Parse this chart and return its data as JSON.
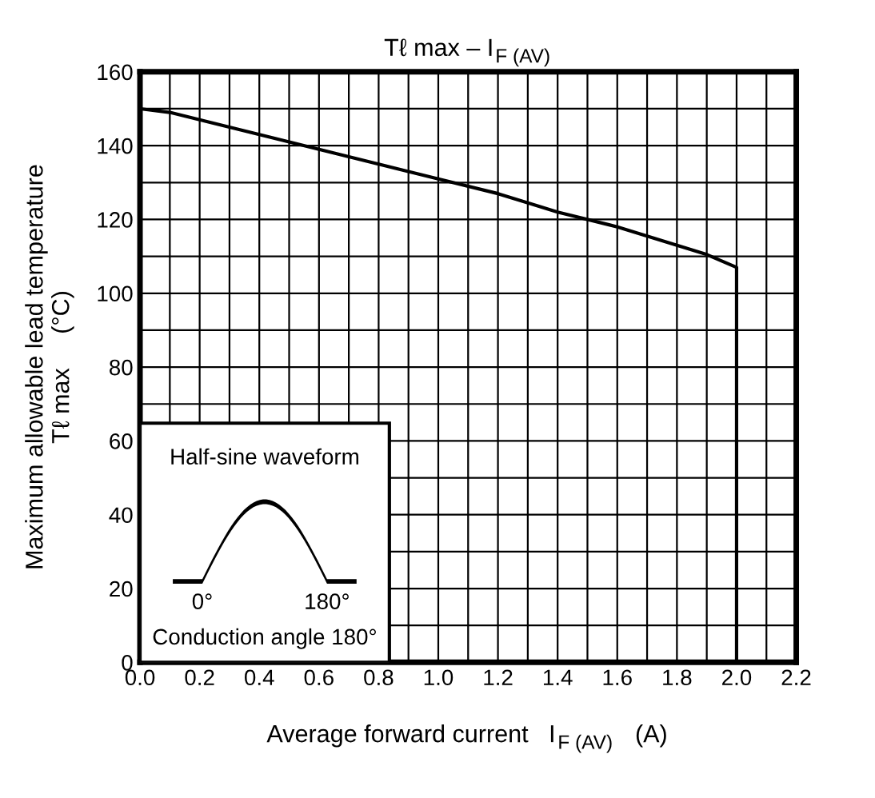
{
  "chart_data": {
    "type": "line",
    "title": "Tℓ max – I$_{F (AV)}$",
    "xlabel": "Average forward current   I$_{F (AV)}$   (A)",
    "ylabel": "Maximum allowable lead temperature\nTℓ max     (°C)",
    "series": [
      {
        "color": "#000000",
        "x": [
          0.0,
          0.1,
          0.2,
          0.4,
          0.6,
          0.8,
          1.0,
          1.2,
          1.4,
          1.6,
          1.8,
          1.9,
          2.0,
          2.0
        ],
        "values": [
          150,
          149,
          147,
          143,
          139,
          135,
          131,
          127,
          122,
          118,
          113,
          110.5,
          107,
          0
        ]
      }
    ],
    "xlim": [
      0,
      2.2
    ],
    "ylim": [
      0,
      160
    ],
    "xticks": [
      {
        "value": 0.0,
        "label": "0.0"
      },
      {
        "value": 0.1,
        "label": null
      },
      {
        "value": 0.2,
        "label": "0.2"
      },
      {
        "value": 0.3,
        "label": null
      },
      {
        "value": 0.4,
        "label": "0.4"
      },
      {
        "value": 0.5,
        "label": null
      },
      {
        "value": 0.6,
        "label": "0.6"
      },
      {
        "value": 0.7,
        "label": null
      },
      {
        "value": 0.8,
        "label": "0.8"
      },
      {
        "value": 0.9,
        "label": null
      },
      {
        "value": 1.0,
        "label": "1.0"
      },
      {
        "value": 1.1,
        "label": null
      },
      {
        "value": 1.2,
        "label": "1.2"
      },
      {
        "value": 1.3,
        "label": null
      },
      {
        "value": 1.4,
        "label": "1.4"
      },
      {
        "value": 1.5,
        "label": null
      },
      {
        "value": 1.6,
        "label": "1.6"
      },
      {
        "value": 1.7,
        "label": null
      },
      {
        "value": 1.8,
        "label": "1.8"
      },
      {
        "value": 1.9,
        "label": null
      },
      {
        "value": 2.0,
        "label": "2.0"
      },
      {
        "value": 2.1,
        "label": null
      },
      {
        "value": 2.2,
        "label": "2.2"
      }
    ],
    "yticks": [
      0,
      {
        "value": 10,
        "label": null
      },
      20,
      {
        "value": 30,
        "label": null
      },
      40,
      {
        "value": 50,
        "label": null
      },
      60,
      {
        "value": 70,
        "label": null
      },
      80,
      {
        "value": 90,
        "label": null
      },
      100,
      {
        "value": 110,
        "label": null
      },
      120,
      {
        "value": 130,
        "label": null
      },
      140,
      {
        "value": 150,
        "label": null
      },
      160
    ],
    "grid": true,
    "line_style": "solid",
    "marker": "none",
    "annotations": [
      "Half-sine waveform",
      "0°",
      "180°",
      "Conduction angle 180°"
    ]
  }
}
